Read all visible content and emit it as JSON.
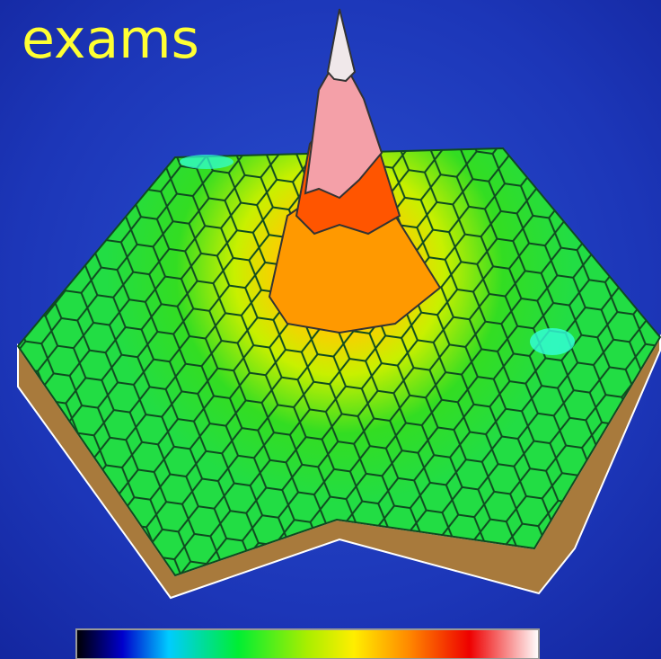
{
  "title": "exams"
}
